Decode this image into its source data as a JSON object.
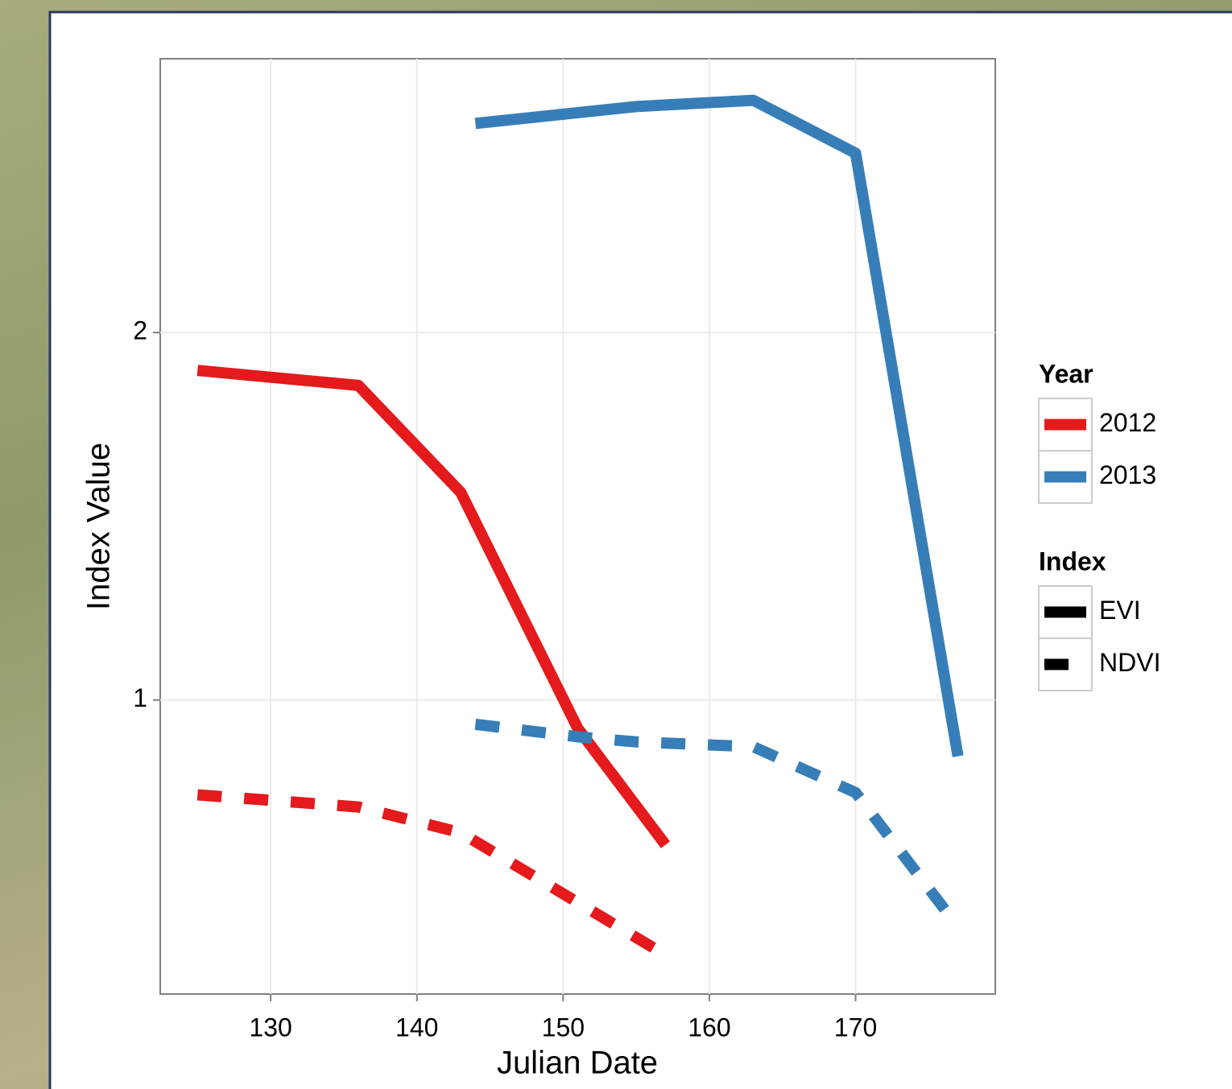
{
  "chart_data": {
    "type": "line",
    "x_label": "Julian Date",
    "y_label": "Index Value",
    "xlim": [
      122.45,
      179.55
    ],
    "xticks": [
      130,
      140,
      150,
      160,
      170
    ],
    "ylim": [
      0.2,
      2.745
    ],
    "yticks": [
      1,
      2
    ],
    "grid": true,
    "color_legend": {
      "title": "Year",
      "items": [
        {
          "label": "2012",
          "color": "#e41a1c"
        },
        {
          "label": "2013",
          "color": "#377eb8"
        }
      ]
    },
    "linetype_legend": {
      "title": "Index",
      "items": [
        {
          "label": "EVI",
          "dash": "solid"
        },
        {
          "label": "NDVI",
          "dash": "dashed"
        }
      ]
    },
    "series": [
      {
        "color": "#e41a1c",
        "dash": "solid",
        "x": [
          125,
          136,
          143,
          151,
          157
        ],
        "values": [
          1.897,
          1.856,
          1.565,
          0.923,
          0.606
        ]
      },
      {
        "color": "#e41a1c",
        "dash": "dashed",
        "x": [
          125,
          136,
          143,
          151,
          157
        ],
        "values": [
          0.742,
          0.709,
          0.639,
          0.449,
          0.306
        ]
      },
      {
        "color": "#377eb8",
        "dash": "solid",
        "x": [
          144,
          155,
          163,
          170,
          177
        ],
        "values": [
          2.569,
          2.615,
          2.632,
          2.488,
          0.847
        ]
      },
      {
        "color": "#377eb8",
        "dash": "dashed",
        "x": [
          144,
          151,
          155,
          163,
          170,
          177
        ],
        "values": [
          0.934,
          0.9,
          0.886,
          0.873,
          0.748,
          0.383
        ]
      }
    ]
  }
}
